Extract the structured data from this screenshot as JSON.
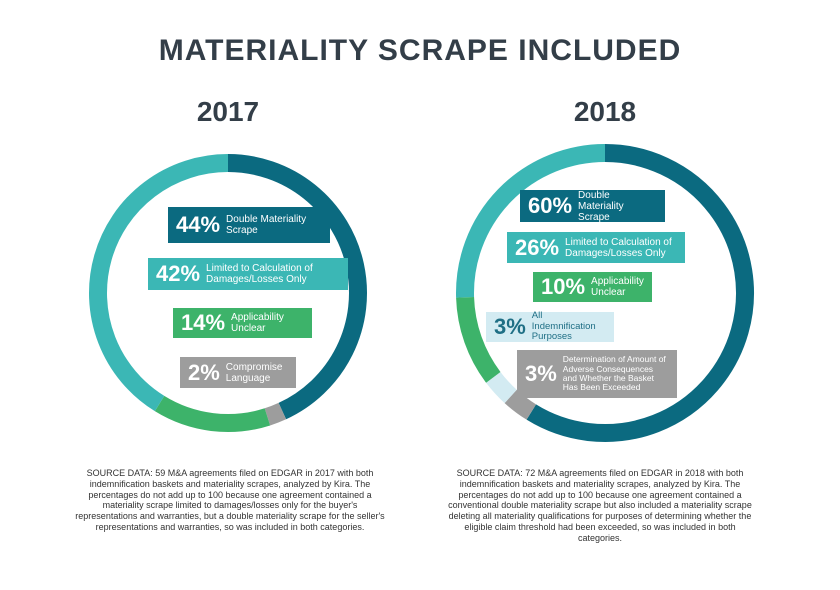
{
  "title": "MATERIALITY SCRAPE INCLUDED",
  "chart_data": [
    {
      "type": "donut",
      "title": "2017",
      "categories": [
        "Double Materiality Scrape",
        "Limited to Calculation of Damages/Losses Only",
        "Applicability Unclear",
        "Compromise Language"
      ],
      "values": [
        44,
        42,
        14,
        2
      ],
      "value_labels": [
        "44%",
        "42%",
        "14%",
        "2%"
      ],
      "colors": [
        "#0b6a80",
        "#3bb7b5",
        "#3db36a",
        "#9d9d9d"
      ],
      "note": "SOURCE DATA: 59 M&A agreements filed on EDGAR in 2017 with both indemnification baskets and materiality scrapes, analyzed by Kira. The percentages do not add up to 100 because one agreement contained a materiality scrape limited to damages/losses only for the buyer's representations and warranties, but a double materiality scrape for the seller's representations and warranties, so was included in both categories."
    },
    {
      "type": "donut",
      "title": "2018",
      "categories": [
        "Double Materiality Scrape",
        "Limited to Calculation of Damages/Losses Only",
        "Applicability Unclear",
        "All Indemnification Purposes",
        "Determination of Amount of Adverse Consequences and Whether the Basket Has Been Exceeded"
      ],
      "values": [
        60,
        26,
        10,
        3,
        3
      ],
      "value_labels": [
        "60%",
        "26%",
        "10%",
        "3%",
        "3%"
      ],
      "colors": [
        "#0b6a80",
        "#3bb7b5",
        "#3db36a",
        "#d3ebf2",
        "#9d9d9d"
      ],
      "note": "SOURCE DATA: 72 M&A agreements filed on EDGAR in 2018 with both indemnification baskets and materiality scrapes, analyzed by Kira. The percentages do not add up to 100 because one agreement contained a conventional double materiality scrape but also included a materiality scrape deleting all materiality qualifications for purposes of determining whether the eligible claim threshold had been exceeded, so was included in both categories."
    }
  ]
}
